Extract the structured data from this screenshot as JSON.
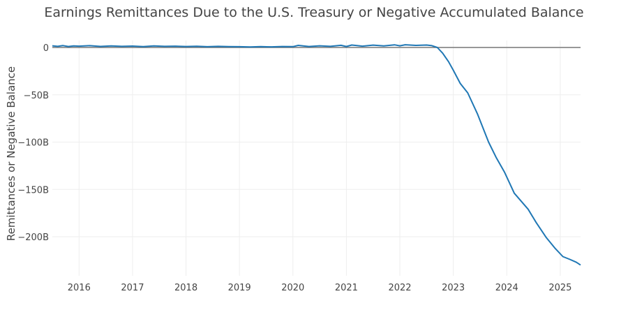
{
  "chart_data": {
    "type": "line",
    "title": "Earnings Remittances Due to the U.S. Treasury or Negative Accumulated Balance",
    "xlabel": "",
    "ylabel": "Remittances or Negative Balance",
    "xlim": [
      2015.5,
      2025.38
    ],
    "ylim": [
      -242,
      7
    ],
    "x_ticks": [
      2016,
      2017,
      2018,
      2019,
      2020,
      2021,
      2022,
      2023,
      2024,
      2025
    ],
    "x_tick_labels": [
      "2016",
      "2017",
      "2018",
      "2019",
      "2020",
      "2021",
      "2022",
      "2023",
      "2024",
      "2025"
    ],
    "y_ticks": [
      0,
      -50,
      -100,
      -150,
      -200
    ],
    "y_tick_labels": [
      "0",
      "−50B",
      "−100B",
      "−150B",
      "−200B"
    ],
    "grid": true,
    "line_color": "#1f77b4",
    "series": [
      {
        "name": "Remittances or Negative Balance (B)",
        "x": [
          2015.5,
          2015.6,
          2015.7,
          2015.8,
          2015.9,
          2016.0,
          2016.2,
          2016.4,
          2016.6,
          2016.8,
          2017.0,
          2017.2,
          2017.4,
          2017.6,
          2017.8,
          2018.0,
          2018.2,
          2018.4,
          2018.6,
          2018.8,
          2019.0,
          2019.2,
          2019.4,
          2019.6,
          2019.8,
          2020.0,
          2020.1,
          2020.3,
          2020.5,
          2020.7,
          2020.9,
          2021.0,
          2021.1,
          2021.3,
          2021.5,
          2021.7,
          2021.9,
          2022.0,
          2022.1,
          2022.3,
          2022.5,
          2022.6,
          2022.7,
          2022.8,
          2022.91,
          2023.0,
          2023.13,
          2023.27,
          2023.45,
          2023.66,
          2023.8,
          2023.96,
          2024.14,
          2024.4,
          2024.55,
          2024.74,
          2024.9,
          2025.05,
          2025.18,
          2025.3,
          2025.38
        ],
        "y": [
          1.8,
          1.2,
          2.0,
          1.0,
          1.6,
          1.4,
          1.9,
          1.1,
          1.7,
          1.2,
          1.5,
          0.9,
          1.6,
          1.2,
          1.4,
          1.0,
          1.3,
          0.8,
          1.2,
          0.9,
          0.8,
          0.6,
          0.9,
          0.7,
          1.0,
          0.9,
          2.2,
          1.0,
          1.8,
          1.2,
          2.3,
          1.0,
          2.6,
          1.4,
          2.5,
          1.6,
          2.8,
          1.8,
          2.9,
          2.2,
          2.6,
          1.9,
          0,
          -6,
          -15,
          -24,
          -38,
          -48,
          -70,
          -100,
          -116,
          -132,
          -154,
          -171,
          -185,
          -201,
          -212,
          -221,
          -224,
          -227,
          -230
        ]
      }
    ]
  }
}
